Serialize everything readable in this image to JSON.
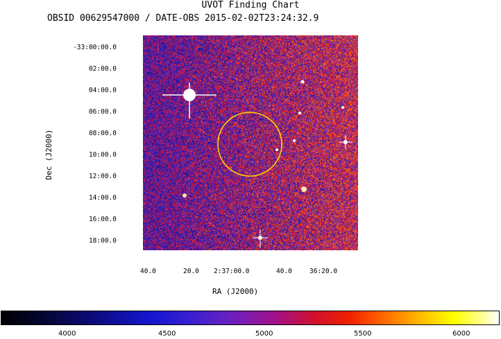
{
  "title": "UVOT Finding Chart",
  "subtitle": "OBSID 00629547000 / DATE-OBS 2015-02-02T23:24:32.9",
  "dec_ticks": [
    "-33:00:00.0",
    "02:00.0",
    "04:00.0",
    "06:00.0",
    "08:00.0",
    "10:00.0",
    "12:00.0",
    "14:00.0",
    "16:00.0",
    "18:00.0"
  ],
  "ra_ticks": [
    "40.0",
    "20.0",
    "2:37:00.0",
    "40.0",
    "36:20.0"
  ],
  "ylabel": "Dec (J2000)",
  "xlabel": "RA (J2000)",
  "colorbar_ticks": [
    "4000",
    "4500",
    "5000",
    "5500",
    "6000"
  ],
  "colors": {
    "circle": "#ffd400",
    "star": "#ffffff"
  }
}
